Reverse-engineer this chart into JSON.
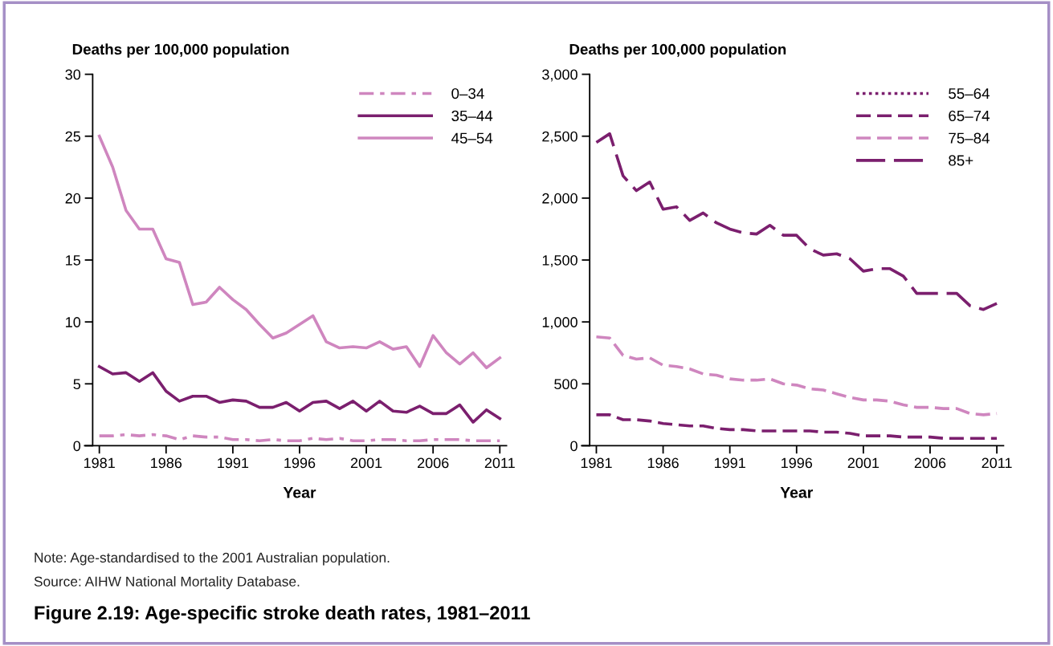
{
  "chart_data": [
    {
      "type": "line",
      "title": "Figure 2.19: Age-specific stroke death rates, 1981–2011",
      "ylabel": "Deaths per 100,000 population",
      "xlabel": "Year",
      "annotations": [
        "Note: Age-standardised to the 2001 Australian population.",
        "Source: AIHW National Mortality Database."
      ],
      "x": [
        1981,
        1982,
        1983,
        1984,
        1985,
        1986,
        1987,
        1988,
        1989,
        1990,
        1991,
        1992,
        1993,
        1994,
        1995,
        1996,
        1997,
        1998,
        1999,
        2000,
        2001,
        2002,
        2003,
        2004,
        2005,
        2006,
        2007,
        2008,
        2009,
        2010,
        2011
      ],
      "xlim": [
        1980.5,
        2011.5
      ],
      "xticks": [
        1981,
        1986,
        1991,
        1996,
        2001,
        2006,
        2011
      ],
      "ylim": [
        0,
        30
      ],
      "yticks": [
        0,
        5,
        10,
        15,
        20,
        25,
        30
      ],
      "grid": false,
      "legend": "top right",
      "marker": "none",
      "series": [
        {
          "name": "0–34",
          "color": "#cf86bf",
          "line_style": "dashdot",
          "values": [
            0.8,
            0.8,
            0.9,
            0.8,
            0.9,
            0.8,
            0.5,
            0.8,
            0.7,
            0.7,
            0.5,
            0.5,
            0.4,
            0.5,
            0.4,
            0.4,
            0.6,
            0.5,
            0.6,
            0.4,
            0.4,
            0.5,
            0.5,
            0.4,
            0.4,
            0.5,
            0.5,
            0.5,
            0.4,
            0.4,
            0.4
          ]
        },
        {
          "name": "35–44",
          "color": "#7b1f6e",
          "line_style": "solid",
          "values": [
            6.4,
            5.8,
            5.9,
            5.2,
            5.9,
            4.4,
            3.6,
            4.0,
            4.0,
            3.5,
            3.7,
            3.6,
            3.1,
            3.1,
            3.5,
            2.8,
            3.5,
            3.6,
            3.0,
            3.6,
            2.8,
            3.6,
            2.8,
            2.7,
            3.2,
            2.6,
            2.6,
            3.3,
            1.9,
            2.9,
            2.2
          ]
        },
        {
          "name": "45–54",
          "color": "#cf86bf",
          "line_style": "solid",
          "values": [
            25.0,
            22.5,
            19.0,
            17.5,
            17.5,
            15.1,
            14.8,
            11.4,
            11.6,
            12.8,
            11.8,
            11.0,
            9.8,
            8.7,
            9.1,
            9.8,
            10.5,
            8.4,
            7.9,
            8.0,
            7.9,
            8.4,
            7.8,
            8.0,
            6.4,
            8.9,
            7.5,
            6.6,
            7.5,
            6.3,
            7.1
          ]
        }
      ]
    },
    {
      "type": "line",
      "ylabel": "Deaths per 100,000 population",
      "xlabel": "Year",
      "x": [
        1981,
        1982,
        1983,
        1984,
        1985,
        1986,
        1987,
        1988,
        1989,
        1990,
        1991,
        1992,
        1993,
        1994,
        1995,
        1996,
        1997,
        1998,
        1999,
        2000,
        2001,
        2002,
        2003,
        2004,
        2005,
        2006,
        2007,
        2008,
        2009,
        2010,
        2011
      ],
      "xlim": [
        1980.5,
        2011.5
      ],
      "xticks": [
        1981,
        1986,
        1991,
        1996,
        2001,
        2006,
        2011
      ],
      "ylim": [
        0,
        3000
      ],
      "yticks": [
        0,
        500,
        {
          "value": 1000,
          "label": "1,000"
        },
        {
          "value": 1500,
          "label": "1,500"
        },
        {
          "value": 2000,
          "label": "2,000"
        },
        {
          "value": 2500,
          "label": "2,500"
        },
        {
          "value": 3000,
          "label": "3,000"
        }
      ],
      "grid": false,
      "legend": "top right",
      "marker": "none",
      "series": [
        {
          "name": "55–64",
          "color": "#7b1f6e",
          "line_style": "dotted",
          "values": [
            null,
            null,
            null,
            null,
            null,
            null,
            null,
            null,
            null,
            null,
            null,
            null,
            null,
            null,
            null,
            null,
            null,
            null,
            null,
            null,
            null,
            null,
            null,
            null,
            null,
            null,
            null,
            null,
            null,
            null,
            null
          ]
        },
        {
          "name": "65–74",
          "color": "#7b1f6e",
          "line_style": "dashed",
          "values": [
            250,
            250,
            210,
            210,
            200,
            180,
            170,
            160,
            160,
            140,
            130,
            130,
            120,
            120,
            120,
            120,
            120,
            110,
            110,
            100,
            80,
            80,
            80,
            70,
            70,
            70,
            60,
            60,
            60,
            60,
            60
          ]
        },
        {
          "name": "75–84",
          "color": "#cf86bf",
          "line_style": "dashed",
          "values": [
            880,
            870,
            730,
            700,
            710,
            650,
            640,
            620,
            580,
            570,
            540,
            530,
            530,
            540,
            500,
            490,
            460,
            450,
            420,
            390,
            370,
            370,
            360,
            330,
            310,
            310,
            300,
            300,
            260,
            250,
            260
          ]
        },
        {
          "name": "85+",
          "color": "#7b1f6e",
          "line_style": "longdash",
          "values": [
            2450,
            2520,
            2180,
            2060,
            2130,
            1910,
            1930,
            1820,
            1880,
            1800,
            1750,
            1720,
            1710,
            1780,
            1700,
            1700,
            1590,
            1540,
            1550,
            1510,
            1410,
            1430,
            1430,
            1370,
            1230,
            1230,
            1230,
            1230,
            1130,
            1100,
            1150
          ]
        }
      ]
    }
  ]
}
